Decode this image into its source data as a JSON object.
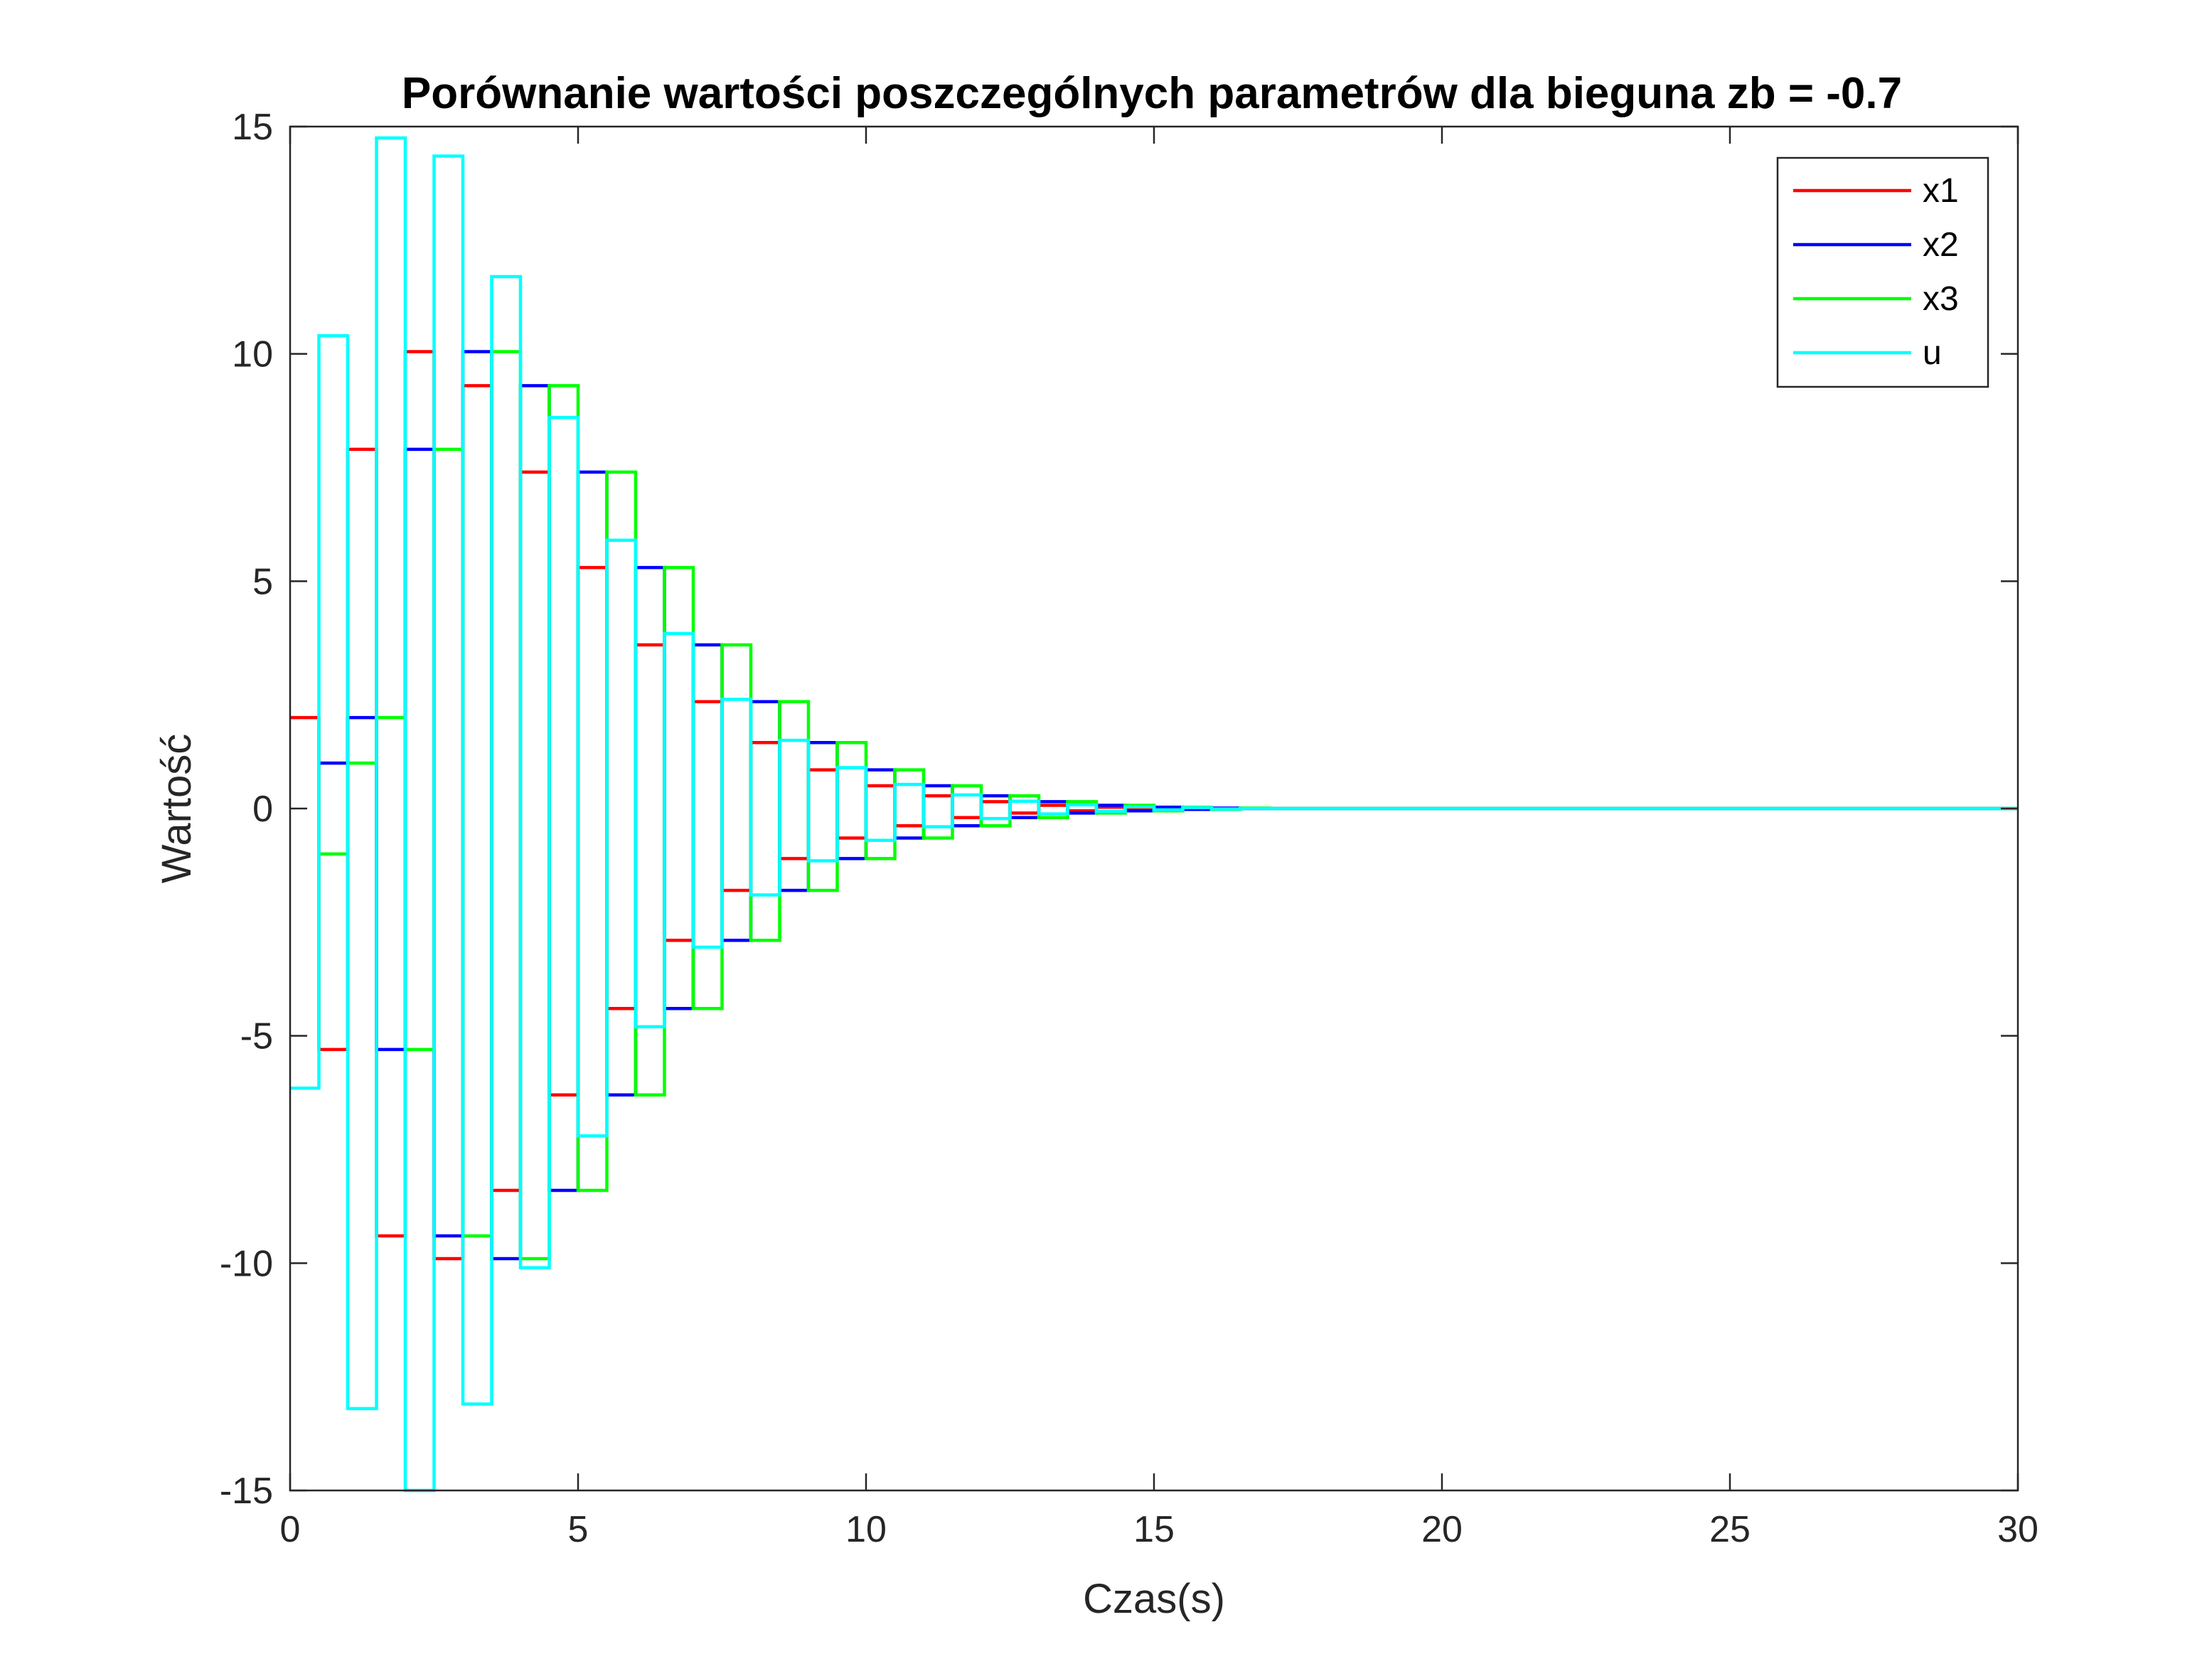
{
  "chart_data": {
    "type": "line",
    "subtype": "stairs",
    "title": "Porównanie wartości poszczególnych parametrów dla bieguna zb = -0.7",
    "xlabel": "Czas(s)",
    "ylabel": "Wartość",
    "xlim": [
      0,
      30
    ],
    "ylim": [
      -15,
      15
    ],
    "xticks": [
      0,
      5,
      10,
      15,
      20,
      25,
      30
    ],
    "yticks": [
      -15,
      -10,
      -5,
      0,
      5,
      10,
      15
    ],
    "grid": false,
    "legend_position": "top-right",
    "sample_time": 0.5,
    "series": [
      {
        "name": "x1",
        "color": "#ff0000",
        "offset": 0,
        "values": [
          2,
          -5.3,
          7.9,
          -9.4,
          10.05,
          -9.9,
          9.3,
          -8.4,
          7.4,
          -6.3,
          5.3,
          -4.4,
          3.6,
          -2.9,
          2.35,
          -1.8,
          1.45,
          -1.1,
          0.85,
          -0.65,
          0.5,
          -0.38,
          0.28,
          -0.2,
          0.15,
          -0.1,
          0.07,
          -0.05,
          0.03,
          -0.02,
          0.01,
          0,
          0
        ]
      },
      {
        "name": "x2",
        "color": "#0000ff",
        "offset": 0.5,
        "values": [
          1,
          2,
          -5.3,
          7.9,
          -9.4,
          10.05,
          -9.9,
          9.3,
          -8.4,
          7.4,
          -6.3,
          5.3,
          -4.4,
          3.6,
          -2.9,
          2.35,
          -1.8,
          1.45,
          -1.1,
          0.85,
          -0.65,
          0.5,
          -0.38,
          0.28,
          -0.2,
          0.15,
          -0.1,
          0.07,
          -0.05,
          0.03,
          -0.02,
          0.01,
          0
        ]
      },
      {
        "name": "x3",
        "color": "#00ff00",
        "offset": 0.5,
        "values": [
          -1,
          1,
          2,
          -5.3,
          7.9,
          -9.4,
          10.05,
          -9.9,
          9.3,
          -8.4,
          7.4,
          -6.3,
          5.3,
          -4.4,
          3.6,
          -2.9,
          2.35,
          -1.8,
          1.45,
          -1.1,
          0.85,
          -0.65,
          0.5,
          -0.38,
          0.28,
          -0.2,
          0.15,
          -0.1,
          0.07,
          -0.05,
          0.03,
          -0.02,
          0.01,
          0
        ]
      },
      {
        "name": "u",
        "color": "#00ffff",
        "offset": 0,
        "values": [
          -6.15,
          10.4,
          -13.2,
          14.75,
          -15,
          14.35,
          -13.1,
          11.7,
          -10.1,
          8.6,
          -7.2,
          5.9,
          -4.8,
          3.85,
          -3.05,
          2.4,
          -1.9,
          1.5,
          -1.15,
          0.9,
          -0.7,
          0.53,
          -0.4,
          0.3,
          -0.22,
          0.16,
          -0.12,
          0.08,
          -0.06,
          0.04,
          -0.03,
          0.02,
          -0.01,
          0
        ]
      }
    ]
  }
}
